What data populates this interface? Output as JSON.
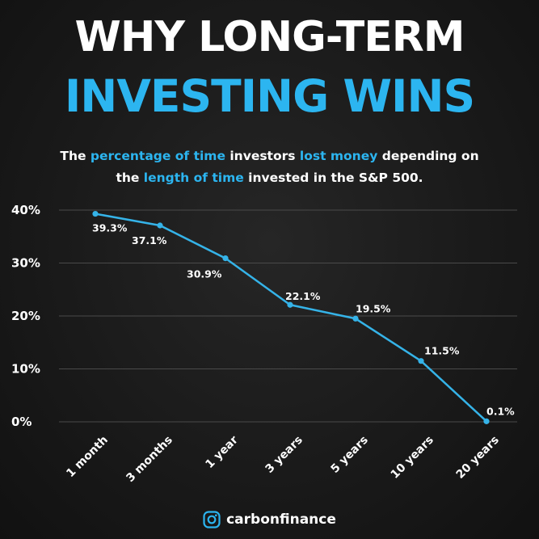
{
  "colors": {
    "accent": "#2cb5f0",
    "line": "#35b3e8",
    "text": "#ffffff",
    "grid": "#4a4a4a",
    "background": "#1a1a1a"
  },
  "header": {
    "line1": "WHY LONG-TERM",
    "line2": "INVESTING WINS"
  },
  "subtitle": {
    "line1": [
      {
        "text": "The ",
        "accent": false
      },
      {
        "text": "percentage of time",
        "accent": true
      },
      {
        "text": " investors ",
        "accent": false
      },
      {
        "text": "lost money",
        "accent": true
      },
      {
        "text": " depending on",
        "accent": false
      }
    ],
    "line2": [
      {
        "text": "the ",
        "accent": false
      },
      {
        "text": "length of time",
        "accent": true
      },
      {
        "text": " invested in the S&P 500.",
        "accent": false
      }
    ]
  },
  "chart_data": {
    "type": "line",
    "categories": [
      "1 month",
      "3 months",
      "1 year",
      "3 years",
      "5 years",
      "10 years",
      "20 years"
    ],
    "values": [
      39.3,
      37.1,
      30.9,
      22.1,
      19.5,
      11.5,
      0.1
    ],
    "data_labels": [
      "39.3%",
      "37.1%",
      "30.9%",
      "22.1%",
      "19.5%",
      "11.5%",
      "0.1%"
    ],
    "yticks": [
      0,
      10,
      20,
      30,
      40
    ],
    "ytick_labels": [
      "0%",
      "10%",
      "20%",
      "30%",
      "40%"
    ],
    "ylim": [
      0,
      40
    ],
    "grid": true,
    "xlabel": "",
    "ylabel": ""
  },
  "footer": {
    "icon": "instagram-icon",
    "handle": "carbonfinance"
  }
}
